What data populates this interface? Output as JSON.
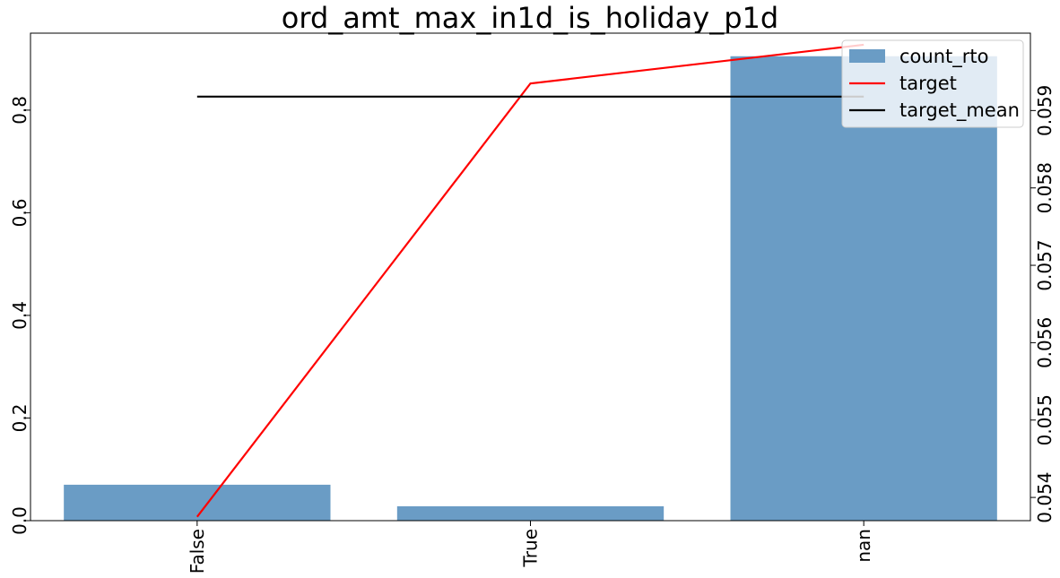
{
  "chart_data": {
    "type": "bar",
    "title": "ord_amt_max_in1d_is_holiday_p1d",
    "categories": [
      "False",
      "True",
      "nan"
    ],
    "series": [
      {
        "name": "count_rto",
        "type": "bar",
        "axis": "left",
        "color": "#6a9cc5",
        "values": [
          0.07,
          0.028,
          0.905
        ]
      },
      {
        "name": "target",
        "type": "line",
        "axis": "right",
        "color": "#ff0000",
        "values": [
          0.05375,
          0.05935,
          0.05985
        ]
      },
      {
        "name": "target_mean",
        "type": "line",
        "axis": "right",
        "color": "#000000",
        "values": [
          0.05918,
          0.05918,
          0.05918
        ]
      }
    ],
    "left_axis": {
      "ylim": [
        0,
        0.95
      ],
      "ticks": [
        0.0,
        0.2,
        0.4,
        0.6,
        0.8
      ],
      "tick_labels": [
        "0.0",
        "0.2",
        "0.4",
        "0.6",
        "0.8"
      ]
    },
    "right_axis": {
      "ylim": [
        0.0537,
        0.06
      ],
      "ticks": [
        0.054,
        0.055,
        0.056,
        0.057,
        0.058,
        0.059
      ],
      "tick_labels": [
        "0.054",
        "0.055",
        "0.056",
        "0.057",
        "0.058",
        "0.059"
      ]
    },
    "legend": {
      "position": "top-right",
      "entries": [
        "count_rto",
        "target",
        "target_mean"
      ]
    },
    "grid": false
  }
}
